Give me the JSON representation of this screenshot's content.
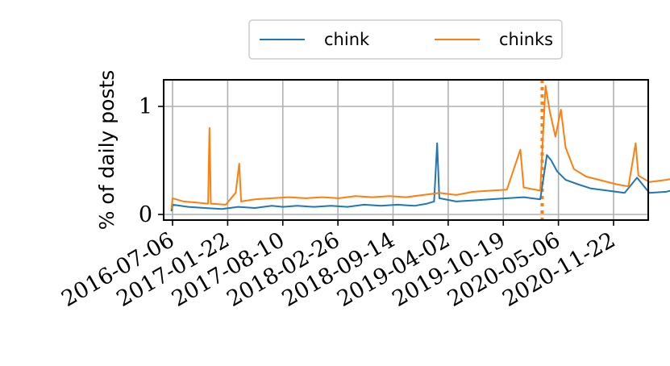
{
  "chart_data": {
    "type": "line",
    "title": "",
    "xlabel": "",
    "ylabel": "% of daily posts",
    "x_range": [
      "2016-06-20",
      "2021-07-15"
    ],
    "ylim": [
      -0.05,
      1.25
    ],
    "x_ticks": [
      "2016-07-06",
      "2017-01-22",
      "2017-08-10",
      "2018-02-26",
      "2018-09-14",
      "2019-04-02",
      "2019-10-19",
      "2020-05-06",
      "2020-11-22"
    ],
    "y_ticks": [
      {
        "value": 0,
        "label": "0"
      },
      {
        "value": 1,
        "label": "1"
      }
    ],
    "grid": true,
    "legend_position": "top",
    "vertical_marker": {
      "date": "2020-03-08",
      "color": "#ff7f0e",
      "style": "dotted"
    },
    "series": [
      {
        "name": "chink",
        "color": "#1f77b4",
        "points": [
          [
            "2016-07-02",
            0.03
          ],
          [
            "2016-07-06",
            0.09
          ],
          [
            "2016-09-01",
            0.07
          ],
          [
            "2016-11-01",
            0.06
          ],
          [
            "2017-01-01",
            0.05
          ],
          [
            "2017-03-01",
            0.07
          ],
          [
            "2017-05-01",
            0.06
          ],
          [
            "2017-07-01",
            0.08
          ],
          [
            "2017-08-10",
            0.07
          ],
          [
            "2017-10-01",
            0.08
          ],
          [
            "2017-12-01",
            0.07
          ],
          [
            "2018-02-01",
            0.08
          ],
          [
            "2018-04-01",
            0.07
          ],
          [
            "2018-06-01",
            0.09
          ],
          [
            "2018-08-01",
            0.08
          ],
          [
            "2018-10-01",
            0.09
          ],
          [
            "2018-12-01",
            0.08
          ],
          [
            "2019-01-15",
            0.1
          ],
          [
            "2019-02-10",
            0.12
          ],
          [
            "2019-02-21",
            0.66
          ],
          [
            "2019-03-01",
            0.15
          ],
          [
            "2019-05-01",
            0.12
          ],
          [
            "2019-07-01",
            0.13
          ],
          [
            "2019-09-01",
            0.14
          ],
          [
            "2019-11-01",
            0.15
          ],
          [
            "2020-01-01",
            0.16
          ],
          [
            "2020-03-01",
            0.14
          ],
          [
            "2020-03-25",
            0.55
          ],
          [
            "2020-04-10",
            0.5
          ],
          [
            "2020-05-01",
            0.4
          ],
          [
            "2020-06-01",
            0.32
          ],
          [
            "2020-07-15",
            0.28
          ],
          [
            "2020-09-01",
            0.24
          ],
          [
            "2020-11-01",
            0.22
          ],
          [
            "2021-01-01",
            0.2
          ],
          [
            "2021-02-15",
            0.34
          ],
          [
            "2021-04-01",
            0.2
          ],
          [
            "2021-06-01",
            0.21
          ],
          [
            "2021-07-12",
            0.24
          ]
        ]
      },
      {
        "name": "chinks",
        "color": "#ff7f0e",
        "points": [
          [
            "2016-07-02",
            0.05
          ],
          [
            "2016-07-06",
            0.15
          ],
          [
            "2016-08-15",
            0.12
          ],
          [
            "2016-10-01",
            0.11
          ],
          [
            "2016-11-12",
            0.1
          ],
          [
            "2016-11-17",
            0.8
          ],
          [
            "2016-11-22",
            0.1
          ],
          [
            "2017-01-15",
            0.09
          ],
          [
            "2017-02-20",
            0.2
          ],
          [
            "2017-03-05",
            0.47
          ],
          [
            "2017-03-12",
            0.12
          ],
          [
            "2017-05-01",
            0.14
          ],
          [
            "2017-07-01",
            0.15
          ],
          [
            "2017-09-01",
            0.16
          ],
          [
            "2017-11-01",
            0.15
          ],
          [
            "2018-01-01",
            0.16
          ],
          [
            "2018-03-01",
            0.15
          ],
          [
            "2018-05-01",
            0.17
          ],
          [
            "2018-07-01",
            0.16
          ],
          [
            "2018-09-01",
            0.17
          ],
          [
            "2018-11-01",
            0.16
          ],
          [
            "2019-01-01",
            0.18
          ],
          [
            "2019-03-01",
            0.2
          ],
          [
            "2019-05-01",
            0.18
          ],
          [
            "2019-07-01",
            0.21
          ],
          [
            "2019-09-01",
            0.22
          ],
          [
            "2019-11-01",
            0.23
          ],
          [
            "2019-12-20",
            0.6
          ],
          [
            "2020-01-01",
            0.25
          ],
          [
            "2020-03-01",
            0.22
          ],
          [
            "2020-03-20",
            1.19
          ],
          [
            "2020-04-05",
            0.95
          ],
          [
            "2020-04-25",
            0.72
          ],
          [
            "2020-05-15",
            0.97
          ],
          [
            "2020-06-01",
            0.62
          ],
          [
            "2020-07-01",
            0.42
          ],
          [
            "2020-08-15",
            0.35
          ],
          [
            "2020-10-01",
            0.32
          ],
          [
            "2020-12-01",
            0.28
          ],
          [
            "2021-01-15",
            0.26
          ],
          [
            "2021-02-10",
            0.66
          ],
          [
            "2021-02-20",
            0.36
          ],
          [
            "2021-04-01",
            0.3
          ],
          [
            "2021-06-01",
            0.32
          ],
          [
            "2021-07-12",
            0.34
          ]
        ]
      }
    ]
  }
}
